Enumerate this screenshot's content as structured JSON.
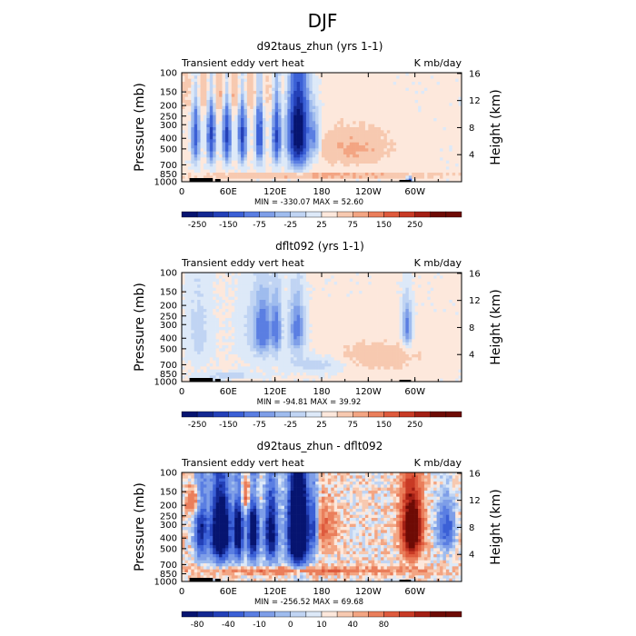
{
  "figure_title": "DJF",
  "colors": {
    "pos_scale": [
      "#fde8dc",
      "#f7c9b0",
      "#f3a583",
      "#ea7e5b",
      "#de5a3d",
      "#c83a25",
      "#a31f14",
      "#6e0b05"
    ],
    "neg_scale": [
      "#dde9f8",
      "#c0d4f3",
      "#9fbcee",
      "#7e9ee8",
      "#5a7ee2",
      "#3b60d6",
      "#2340b8",
      "#132892",
      "#061470"
    ],
    "zero_pos": "#fbe3d5",
    "zero_neg": "#d6e6f8"
  },
  "chart_data": [
    {
      "type": "heatmap",
      "title": "d92taus_zhun (yrs 1-1)",
      "left_string": "Transient eddy vert heat",
      "right_string": "K mb/day",
      "ylabel": "Pressure (mb)",
      "right_ylabel": "Height (km)",
      "x_ticks": [
        "0",
        "60E",
        "120E",
        "180",
        "120W",
        "60W"
      ],
      "x_tick_values": [
        0,
        60,
        120,
        180,
        240,
        300
      ],
      "xlim": [
        0,
        360
      ],
      "y_ticks": [
        "100",
        "150",
        "200",
        "250",
        "300",
        "400",
        "500",
        "700",
        "850",
        "1000"
      ],
      "y_tick_values": [
        100,
        150,
        200,
        250,
        300,
        400,
        500,
        700,
        850,
        1000
      ],
      "ylim": [
        1000,
        100
      ],
      "right_ticks": [
        "16",
        "12",
        "8",
        "4"
      ],
      "right_tick_values": [
        16,
        12,
        8,
        4
      ],
      "stats": "MIN = -330.07   MAX =  52.60",
      "min": -330.07,
      "max": 52.6,
      "colorbar_levels": [
        -300,
        -250,
        -200,
        -150,
        -100,
        -75,
        -50,
        -25,
        0,
        25,
        50,
        75,
        100,
        150,
        200,
        250,
        300
      ],
      "colorbar_labels": [
        "-250",
        "-150",
        "-75",
        "-25",
        "25",
        "75",
        "150",
        "250"
      ],
      "blobs": [
        {
          "lon": 18,
          "p": 380,
          "w": 5,
          "h": 260,
          "amp": -1.05
        },
        {
          "lon": 38,
          "p": 380,
          "w": 5,
          "h": 260,
          "amp": -1.3
        },
        {
          "lon": 58,
          "p": 380,
          "w": 5,
          "h": 260,
          "amp": -1.3
        },
        {
          "lon": 78,
          "p": 380,
          "w": 5,
          "h": 260,
          "amp": -1.3
        },
        {
          "lon": 100,
          "p": 380,
          "w": 5,
          "h": 260,
          "amp": -1.25
        },
        {
          "lon": 122,
          "p": 380,
          "w": 5,
          "h": 260,
          "amp": -1.3
        },
        {
          "lon": 150,
          "p": 360,
          "w": 12,
          "h": 300,
          "amp": -2.4
        },
        {
          "lon": 171,
          "p": 400,
          "w": 7,
          "h": 200,
          "amp": -0.6
        },
        {
          "lon": 293,
          "p": 950,
          "w": 3,
          "h": 60,
          "amp": -1.2
        },
        {
          "lon": 58,
          "p": 150,
          "w": 65,
          "h": 80,
          "amp": 0.3
        },
        {
          "lon": 220,
          "p": 500,
          "w": 50,
          "h": 200,
          "amp": 0.3
        },
        {
          "lon": 180,
          "p": 880,
          "w": 170,
          "h": 40,
          "amp": 0.45
        }
      ],
      "noise": 0.15,
      "scale_k": 1.0,
      "bg": 0.2
    },
    {
      "type": "heatmap",
      "title": "dflt092 (yrs 1-1)",
      "left_string": "Transient eddy vert heat",
      "right_string": "K mb/day",
      "ylabel": "Pressure (mb)",
      "right_ylabel": "Height (km)",
      "x_ticks": [
        "0",
        "60E",
        "120E",
        "180",
        "120W",
        "60W"
      ],
      "x_tick_values": [
        0,
        60,
        120,
        180,
        240,
        300
      ],
      "xlim": [
        0,
        360
      ],
      "y_ticks": [
        "100",
        "150",
        "200",
        "250",
        "300",
        "400",
        "500",
        "700",
        "850",
        "1000"
      ],
      "y_tick_values": [
        100,
        150,
        200,
        250,
        300,
        400,
        500,
        700,
        850,
        1000
      ],
      "ylim": [
        1000,
        100
      ],
      "right_ticks": [
        "16",
        "12",
        "8",
        "4"
      ],
      "right_tick_values": [
        16,
        12,
        8,
        4
      ],
      "stats": "MIN = -94.81   MAX =  39.92",
      "min": -94.81,
      "max": 39.92,
      "colorbar_levels": [
        -300,
        -250,
        -200,
        -150,
        -100,
        -75,
        -50,
        -25,
        0,
        25,
        50,
        75,
        100,
        150,
        200,
        250,
        300
      ],
      "colorbar_labels": [
        "-250",
        "-150",
        "-75",
        "-25",
        "25",
        "75",
        "150",
        "250"
      ],
      "blobs": [
        {
          "lon": 22,
          "p": 330,
          "w": 16,
          "h": 320,
          "amp": -0.25
        },
        {
          "lon": 95,
          "p": 330,
          "w": 22,
          "h": 260,
          "amp": -0.25
        },
        {
          "lon": 105,
          "p": 340,
          "w": 10,
          "h": 200,
          "amp": -0.7
        },
        {
          "lon": 122,
          "p": 340,
          "w": 6,
          "h": 200,
          "amp": -0.75
        },
        {
          "lon": 148,
          "p": 330,
          "w": 10,
          "h": 200,
          "amp": -0.75
        },
        {
          "lon": 290,
          "p": 320,
          "w": 6,
          "h": 150,
          "amp": -0.75
        },
        {
          "lon": 175,
          "p": 700,
          "w": 40,
          "h": 130,
          "amp": -0.3
        },
        {
          "lon": 60,
          "p": 880,
          "w": 35,
          "h": 60,
          "amp": -0.3
        },
        {
          "lon": 250,
          "p": 600,
          "w": 60,
          "h": 200,
          "amp": 0.25
        }
      ],
      "noise": 0.12,
      "scale_k": 1.0,
      "bg": 0.15
    },
    {
      "type": "heatmap",
      "title": "d92taus_zhun - dflt092",
      "left_string": "Transient eddy vert heat",
      "right_string": "K mb/day",
      "ylabel": "Pressure (mb)",
      "right_ylabel": "Height (km)",
      "x_ticks": [
        "0",
        "60E",
        "120E",
        "180",
        "120W",
        "60W"
      ],
      "x_tick_values": [
        0,
        60,
        120,
        180,
        240,
        300
      ],
      "xlim": [
        0,
        360
      ],
      "y_ticks": [
        "100",
        "150",
        "200",
        "250",
        "300",
        "400",
        "500",
        "700",
        "850",
        "1000"
      ],
      "y_tick_values": [
        100,
        150,
        200,
        250,
        300,
        400,
        500,
        700,
        850,
        1000
      ],
      "ylim": [
        1000,
        100
      ],
      "right_ticks": [
        "16",
        "12",
        "8",
        "4"
      ],
      "right_tick_values": [
        16,
        12,
        8,
        4
      ],
      "stats": "MIN = -256.52   MAX =  69.68",
      "min": -256.52,
      "max": 69.68,
      "colorbar_levels": [
        -120,
        -100,
        -80,
        -60,
        -40,
        -20,
        -10,
        -5,
        0,
        5,
        10,
        20,
        40,
        60,
        80,
        100,
        120
      ],
      "colorbar_labels": [
        "-80",
        "-40",
        "-10",
        "0",
        "10",
        "40",
        "80"
      ],
      "blobs": [
        {
          "lon": 25,
          "p": 330,
          "w": 8,
          "h": 250,
          "amp": -1.7
        },
        {
          "lon": 50,
          "p": 350,
          "w": 12,
          "h": 250,
          "amp": -3.3
        },
        {
          "lon": 73,
          "p": 350,
          "w": 6,
          "h": 250,
          "amp": -2.4
        },
        {
          "lon": 92,
          "p": 350,
          "w": 7,
          "h": 250,
          "amp": -2.6
        },
        {
          "lon": 115,
          "p": 360,
          "w": 8,
          "h": 250,
          "amp": -2.3
        },
        {
          "lon": 150,
          "p": 340,
          "w": 12,
          "h": 290,
          "amp": -4.5
        },
        {
          "lon": 170,
          "p": 330,
          "w": 5,
          "h": 200,
          "amp": -1.2
        },
        {
          "lon": 296,
          "p": 330,
          "w": 12,
          "h": 220,
          "amp": 2.5
        },
        {
          "lon": 20,
          "p": 190,
          "w": 10,
          "h": 60,
          "amp": 0.9
        },
        {
          "lon": 85,
          "p": 160,
          "w": 15,
          "h": 60,
          "amp": 0.9
        },
        {
          "lon": 185,
          "p": 330,
          "w": 15,
          "h": 150,
          "amp": 0.5
        },
        {
          "lon": 340,
          "p": 330,
          "w": 10,
          "h": 150,
          "amp": -1.2
        },
        {
          "lon": 160,
          "p": 800,
          "w": 150,
          "h": 60,
          "amp": 0.5
        }
      ],
      "noise": 0.6,
      "scale_k": 1.0,
      "bg": 0.15
    }
  ]
}
